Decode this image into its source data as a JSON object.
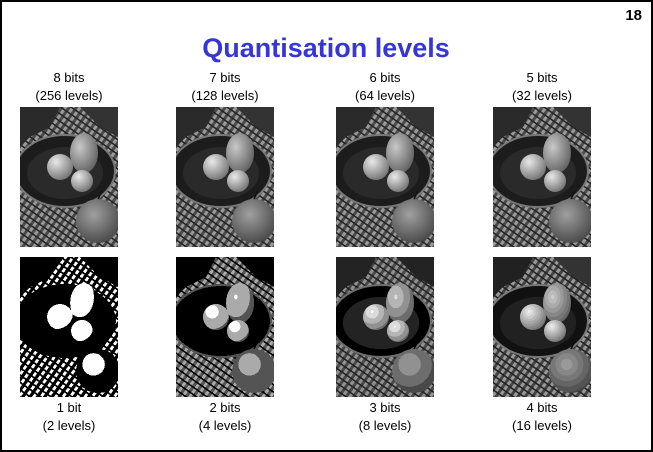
{
  "page_number": "18",
  "title": "Quantisation levels",
  "images": [
    {
      "bits": "8 bits",
      "levels": "(256 levels)"
    },
    {
      "bits": "7 bits",
      "levels": "(128 levels)"
    },
    {
      "bits": "6 bits",
      "levels": "(64 levels)"
    },
    {
      "bits": "5 bits",
      "levels": "(32 levels)"
    },
    {
      "bits": "1 bit",
      "levels": "(2 levels)"
    },
    {
      "bits": "2 bits",
      "levels": "(4 levels)"
    },
    {
      "bits": "3 bits",
      "levels": "(8 levels)"
    },
    {
      "bits": "4 bits",
      "levels": "(16 levels)"
    }
  ]
}
